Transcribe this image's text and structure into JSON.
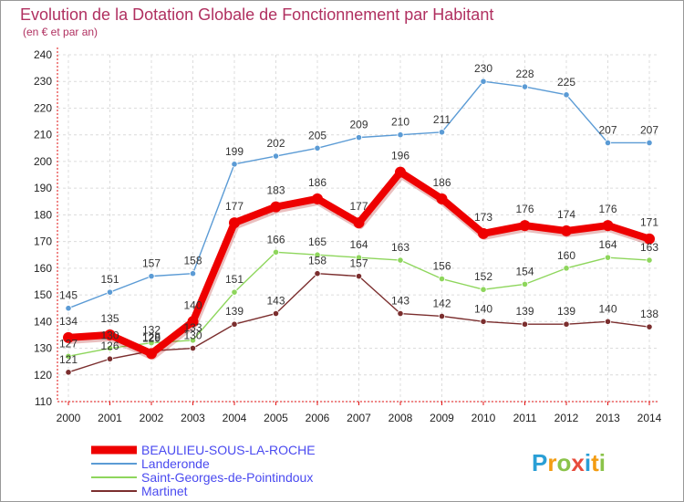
{
  "chart_data": {
    "type": "line",
    "title": "Evolution de la Dotation Globale de Fonctionnement par Habitant",
    "subtitle": "(en € et par an)",
    "x": [
      "2000",
      "2001",
      "2002",
      "2003",
      "2004",
      "2005",
      "2006",
      "2007",
      "2008",
      "2009",
      "2010",
      "2011",
      "2012",
      "2013",
      "2014"
    ],
    "ylim": [
      110,
      240
    ],
    "yticks": [
      110,
      120,
      130,
      140,
      150,
      160,
      170,
      180,
      190,
      200,
      210,
      220,
      230,
      240
    ],
    "grid": true,
    "legend_position": "bottom-left",
    "series": [
      {
        "name": "Landeronde",
        "color": "#5b9bd5",
        "values": [
          145,
          151,
          157,
          158,
          199,
          202,
          205,
          209,
          210,
          211,
          230,
          228,
          225,
          207,
          207
        ]
      },
      {
        "name": "Saint-Georges-de-Pointindoux",
        "color": "#8ed65c",
        "values": [
          127,
          130,
          132,
          133,
          151,
          166,
          165,
          164,
          163,
          156,
          152,
          154,
          160,
          164,
          163
        ]
      },
      {
        "name": "Martinet",
        "color": "#7b2e2e",
        "values": [
          121,
          126,
          129,
          130,
          139,
          143,
          158,
          157,
          143,
          142,
          140,
          139,
          139,
          140,
          138
        ]
      },
      {
        "name": "BEAULIEU-SOUS-LA-ROCHE",
        "color": "#ee0000",
        "values": [
          134,
          135,
          128,
          140,
          177,
          183,
          186,
          177,
          196,
          186,
          173,
          176,
          174,
          176,
          171
        ]
      }
    ],
    "legend_order": [
      "BEAULIEU-SOUS-LA-ROCHE",
      "Landeronde",
      "Saint-Georges-de-Pointindoux",
      "Martinet"
    ]
  },
  "watermark": "Proxiti"
}
